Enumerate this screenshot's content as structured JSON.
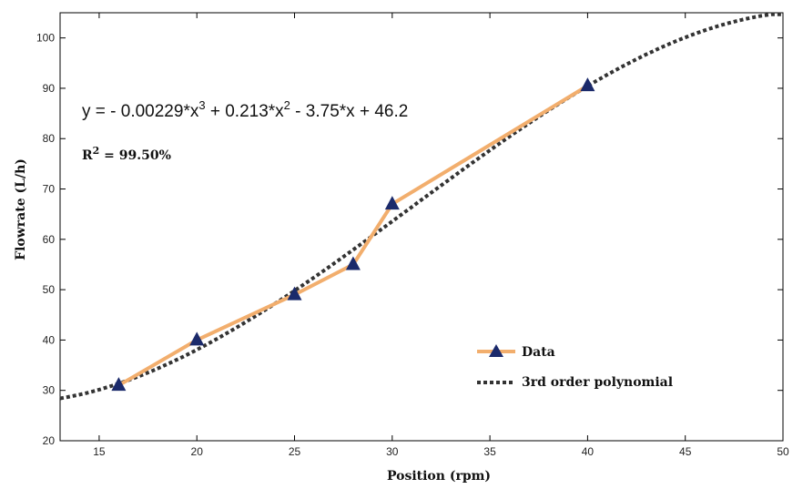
{
  "colors": {
    "data_line": "#F2AE6D",
    "marker": "#1B2A6B",
    "fit_line": "#333333",
    "axis": "#000000"
  },
  "annotations": {
    "equation_main": "y = - 0.00229*x",
    "equation_exp1": "3",
    "equation_mid": " + 0.213*x",
    "equation_exp2": "2",
    "equation_end": " - 3.75*x + 46.2",
    "r2_prefix": "R",
    "r2_exp": "2",
    "r2_value": " = 99.50%"
  },
  "chart_data": {
    "type": "line",
    "xlabel": "Position (rpm)",
    "ylabel": "Flowrate (L/h)",
    "xlim": [
      13,
      50
    ],
    "ylim": [
      20,
      105
    ],
    "xticks": [
      15,
      20,
      25,
      30,
      35,
      40,
      45,
      50
    ],
    "yticks": [
      20,
      30,
      40,
      50,
      60,
      70,
      80,
      90,
      100
    ],
    "grid": false,
    "legend_position": "bottom-right",
    "series": [
      {
        "name": "Data",
        "style": "solid line with triangle markers",
        "x": [
          16,
          20,
          25,
          28,
          30,
          40
        ],
        "y": [
          31,
          40,
          49,
          55,
          67,
          90.5
        ]
      },
      {
        "name": "3rd order polynomial",
        "style": "dotted line",
        "coefficients": {
          "a3": -0.00229,
          "a2": 0.213,
          "a1": -3.75,
          "a0": 46.2
        },
        "x_range": [
          13,
          50
        ]
      }
    ]
  }
}
